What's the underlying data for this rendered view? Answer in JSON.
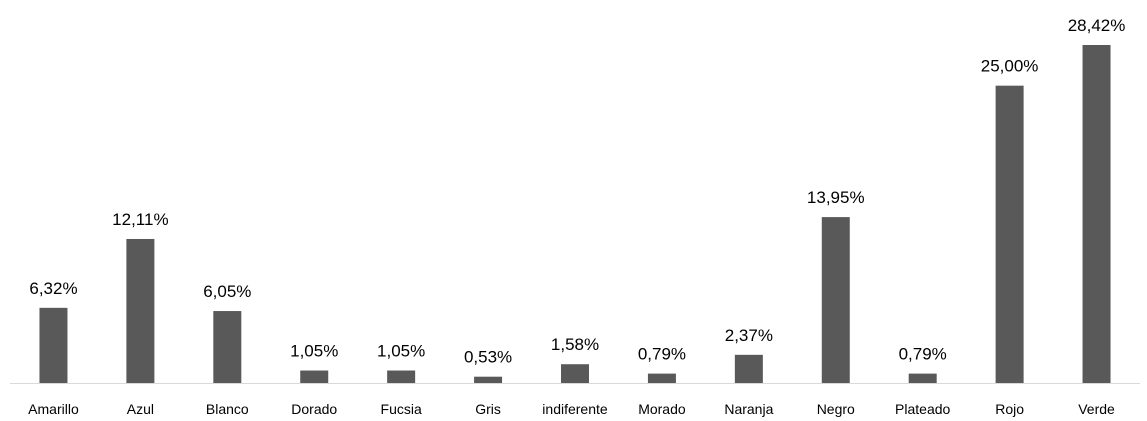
{
  "chart_data": {
    "type": "bar",
    "categories": [
      "Amarillo",
      "Azul",
      "Blanco",
      "Dorado",
      "Fucsia",
      "Gris",
      "indiferente",
      "Morado",
      "Naranja",
      "Negro",
      "Plateado",
      "Rojo",
      "Verde"
    ],
    "values": [
      6.32,
      12.11,
      6.05,
      1.05,
      1.05,
      0.53,
      1.58,
      0.79,
      2.37,
      13.95,
      0.79,
      25.0,
      28.42
    ],
    "value_labels": [
      "6,32%",
      "12,11%",
      "6,05%",
      "1,05%",
      "1,05%",
      "0,53%",
      "1,58%",
      "0,79%",
      "2,37%",
      "13,95%",
      "0,79%",
      "25,00%",
      "28,42%"
    ],
    "color": "#595959"
  }
}
